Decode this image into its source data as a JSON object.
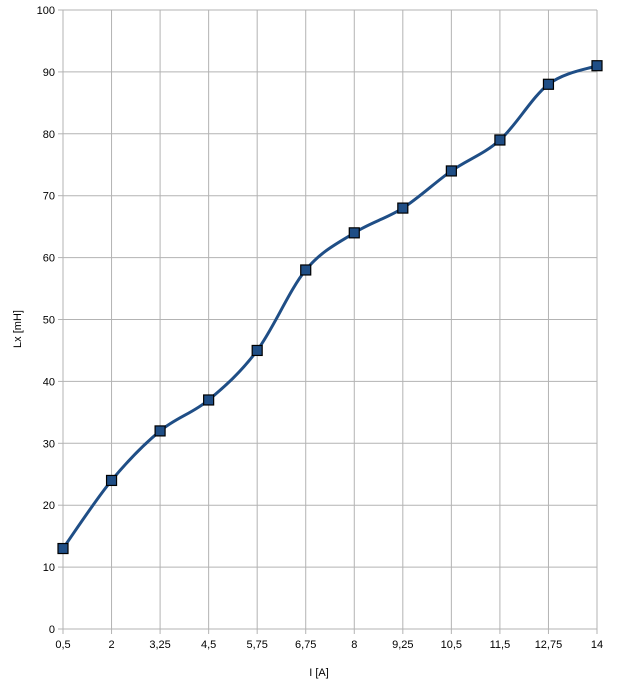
{
  "chart_data": {
    "type": "line",
    "categories": [
      "0,5",
      "2",
      "3,25",
      "4,5",
      "5,75",
      "6,75",
      "8",
      "9,25",
      "10,5",
      "11,5",
      "12,75",
      "14"
    ],
    "series": [
      {
        "name": "",
        "values": [
          13,
          24,
          32,
          37,
          45,
          58,
          64,
          68,
          74,
          79,
          88,
          91
        ]
      }
    ],
    "xlabel": "I [A]",
    "ylabel": "Lx [mH]",
    "ylim": [
      0,
      100
    ],
    "yticks": [
      "0",
      "10",
      "20",
      "30",
      "40",
      "50",
      "60",
      "70",
      "80",
      "90",
      "100"
    ],
    "grid": true,
    "smooth": true,
    "marker": "square",
    "colors": {
      "line": "#1f4e86",
      "marker_fill": "#1f4e86",
      "marker_stroke": "#000000",
      "grid": "#b3b3b3"
    }
  }
}
